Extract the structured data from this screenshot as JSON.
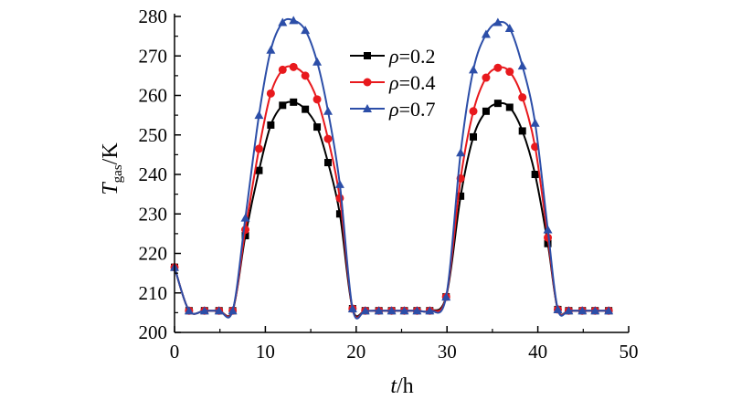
{
  "chart_data": {
    "type": "line",
    "title": "",
    "xlabel": {
      "var": "t",
      "unit": "/h"
    },
    "ylabel": {
      "var": "T",
      "sub": "gas",
      "unit": "/K"
    },
    "xlim": [
      0,
      50
    ],
    "ylim": [
      200,
      280
    ],
    "x_ticks": [
      0,
      10,
      20,
      30,
      40,
      50
    ],
    "x_tick_labels": [
      "0",
      "10",
      "20",
      "30",
      "40",
      "50"
    ],
    "y_ticks": [
      200,
      210,
      220,
      230,
      240,
      250,
      260,
      270,
      280
    ],
    "y_tick_labels": [
      "200",
      "210",
      "220",
      "230",
      "240",
      "250",
      "260",
      "270",
      "280"
    ],
    "grid": false,
    "legend_position": "top-center",
    "series": [
      {
        "name": "ρ=0.2",
        "legend_var": "ρ",
        "legend_value": "=0.2",
        "color": "#000000",
        "marker": "square",
        "x": [
          0,
          1.6,
          3.3,
          4.9,
          6.4,
          7.8,
          9.3,
          10.6,
          11.9,
          13.1,
          14.4,
          15.7,
          16.9,
          18.2,
          19.6,
          21.0,
          22.5,
          23.9,
          25.3,
          26.7,
          28.1,
          29.9,
          31.5,
          32.9,
          34.3,
          35.6,
          36.9,
          38.3,
          39.7,
          41.1,
          42.2,
          43.4,
          44.9,
          46.3,
          47.8
        ],
        "y": [
          216.5,
          205.5,
          205.5,
          205.5,
          205.5,
          224.5,
          241.0,
          252.5,
          257.5,
          258.3,
          256.5,
          252.0,
          243.0,
          230.0,
          206.0,
          205.5,
          205.5,
          205.5,
          205.5,
          205.5,
          205.5,
          209.0,
          234.5,
          249.5,
          256.0,
          258.0,
          257.0,
          251.0,
          240.0,
          222.5,
          205.8,
          205.5,
          205.5,
          205.5,
          205.5
        ]
      },
      {
        "name": "ρ=0.4",
        "legend_var": "ρ",
        "legend_value": "=0.4",
        "color": "#e8191d",
        "marker": "circle",
        "x": [
          0,
          1.6,
          3.3,
          4.9,
          6.4,
          7.8,
          9.3,
          10.6,
          11.9,
          13.1,
          14.4,
          15.7,
          16.9,
          18.2,
          19.6,
          21.0,
          22.5,
          23.9,
          25.3,
          26.7,
          28.1,
          29.9,
          31.5,
          32.9,
          34.3,
          35.6,
          36.9,
          38.3,
          39.7,
          41.1,
          42.2,
          43.4,
          44.9,
          46.3,
          47.8
        ],
        "y": [
          216.5,
          205.5,
          205.5,
          205.5,
          205.5,
          226.0,
          246.5,
          260.5,
          266.5,
          267.2,
          265.0,
          259.0,
          249.0,
          234.0,
          206.0,
          205.5,
          205.5,
          205.5,
          205.5,
          205.5,
          205.5,
          209.0,
          239.0,
          256.0,
          264.5,
          267.0,
          266.0,
          259.5,
          247.0,
          224.0,
          205.8,
          205.5,
          205.5,
          205.5,
          205.5
        ]
      },
      {
        "name": "ρ=0.7",
        "legend_var": "ρ",
        "legend_value": "=0.7",
        "color": "#2c4ea8",
        "marker": "triangle",
        "x": [
          0,
          1.6,
          3.3,
          4.9,
          6.4,
          7.8,
          9.3,
          10.6,
          11.9,
          13.1,
          14.4,
          15.7,
          16.9,
          18.2,
          19.6,
          21.0,
          22.5,
          23.9,
          25.3,
          26.7,
          28.1,
          29.9,
          31.5,
          32.9,
          34.3,
          35.6,
          36.9,
          38.3,
          39.7,
          41.1,
          42.2,
          43.4,
          44.9,
          46.3,
          47.8
        ],
        "y": [
          216.5,
          205.5,
          205.5,
          205.5,
          205.5,
          229.0,
          255.0,
          271.5,
          278.5,
          279.0,
          276.5,
          268.5,
          256.0,
          237.5,
          206.0,
          205.5,
          205.5,
          205.5,
          205.5,
          205.5,
          205.5,
          209.0,
          245.5,
          266.5,
          275.5,
          278.5,
          277.0,
          267.5,
          253.0,
          226.0,
          205.8,
          205.5,
          205.5,
          205.5,
          205.5
        ]
      }
    ]
  }
}
